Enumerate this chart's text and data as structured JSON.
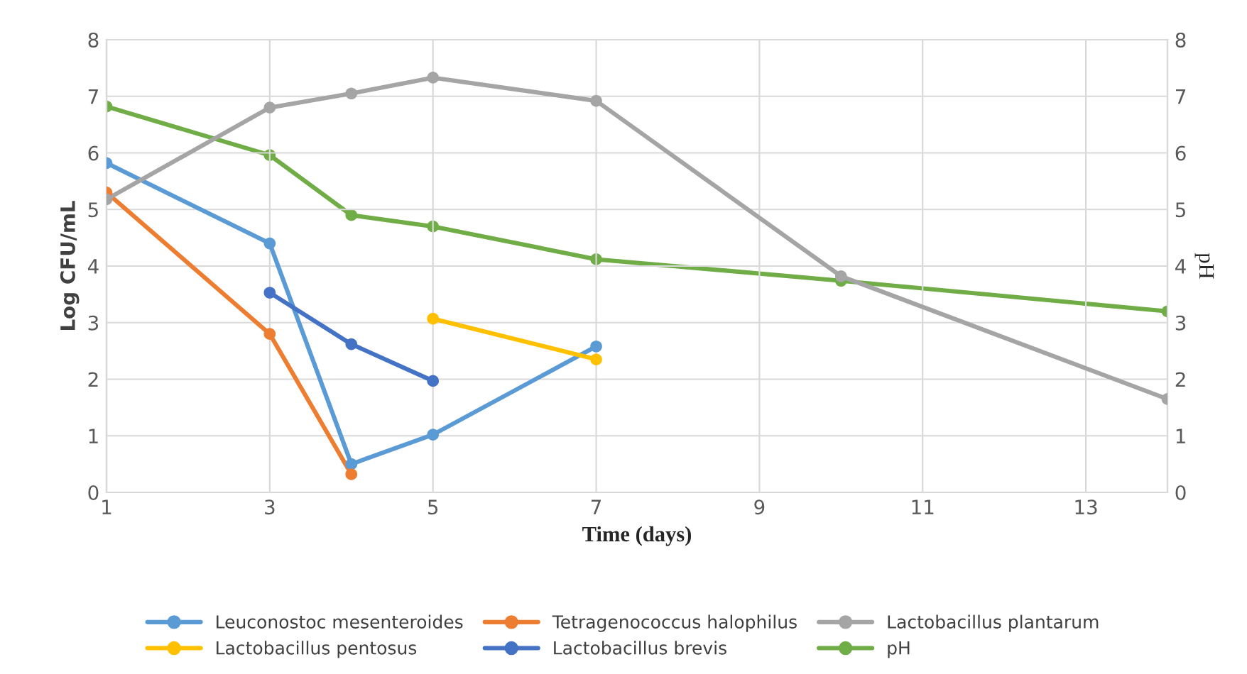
{
  "chart_data": {
    "type": "line",
    "xlabel": "Time (days)",
    "ylabel": "Log CFU/mL",
    "y2label": "pH",
    "xlim": [
      1,
      14
    ],
    "xticks": [
      1,
      3,
      5,
      7,
      9,
      11,
      13
    ],
    "ylim": [
      0,
      8
    ],
    "yticks": [
      0,
      1,
      2,
      3,
      4,
      5,
      6,
      7,
      8
    ],
    "y2lim": [
      0,
      8
    ],
    "y2ticks": [
      0,
      1,
      2,
      3,
      4,
      5,
      6,
      7,
      8
    ],
    "grid": true,
    "legend": "bottom",
    "marker": "circle",
    "line_style": "solid",
    "series": [
      {
        "name": "Leuconostoc mesenteroides",
        "color": "#5b9bd5",
        "x": [
          1,
          3,
          4,
          5,
          7
        ],
        "values": [
          5.82,
          4.4,
          0.5,
          1.02,
          2.58
        ]
      },
      {
        "name": "Tetragenococcus halophilus",
        "color": "#ed7d31",
        "x": [
          1,
          3,
          4
        ],
        "values": [
          5.3,
          2.8,
          0.32
        ]
      },
      {
        "name": "Lactobacillus plantarum",
        "color": "#a5a5a5",
        "x": [
          1,
          3,
          4,
          5,
          7,
          10,
          14
        ],
        "values": [
          5.18,
          6.8,
          7.05,
          7.33,
          6.92,
          3.82,
          1.65
        ]
      },
      {
        "name": "Lactobacillus pentosus",
        "color": "#ffc000",
        "x": [
          5,
          7
        ],
        "values": [
          3.07,
          2.35
        ]
      },
      {
        "name": "Lactobacillus brevis",
        "color": "#4472c4",
        "x": [
          3,
          4,
          5
        ],
        "values": [
          3.53,
          2.62,
          1.97
        ]
      },
      {
        "name": "pH",
        "color": "#70ad47",
        "axis": "y2",
        "x": [
          1,
          3,
          4,
          5,
          7,
          10,
          14
        ],
        "values": [
          6.82,
          5.96,
          4.9,
          4.7,
          4.12,
          3.74,
          3.2
        ]
      }
    ]
  }
}
